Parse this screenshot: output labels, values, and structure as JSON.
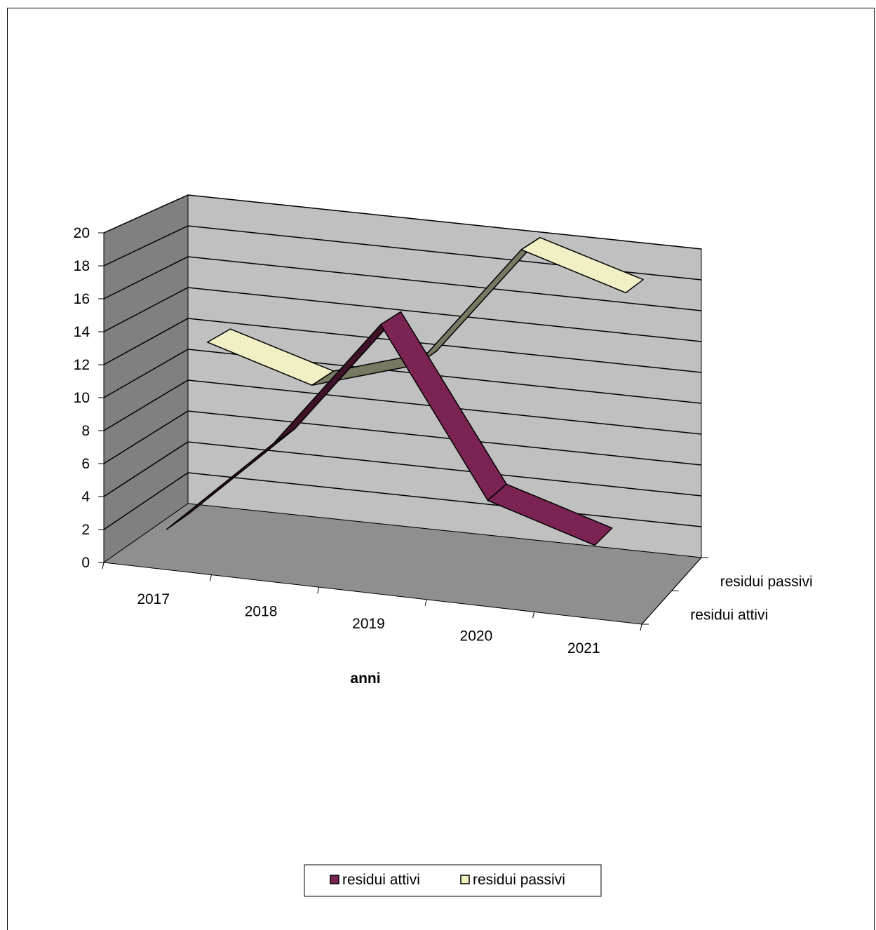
{
  "chart_data": {
    "type": "line",
    "style": "3d",
    "categories": [
      "2017",
      "2018",
      "2019",
      "2020",
      "2021"
    ],
    "series": [
      {
        "name": "residui attivi",
        "values": [
          2,
          8,
          16,
          6,
          4
        ],
        "color": "#7b2352"
      },
      {
        "name": "residui passivi",
        "values": [
          12,
          10,
          12,
          20,
          18
        ],
        "color": "#f1efc4"
      }
    ],
    "title": "",
    "xlabel": "anni",
    "ylabel": "",
    "ylim": [
      0,
      20
    ],
    "yticks": [
      0,
      2,
      4,
      6,
      8,
      10,
      12,
      14,
      16,
      18,
      20
    ],
    "grid": true,
    "legend": "bottom",
    "colors": {
      "back_wall": "#c0c0c0",
      "side_wall": "#808080",
      "floor": "#8f8f8f",
      "frame_border": "#000000"
    }
  }
}
